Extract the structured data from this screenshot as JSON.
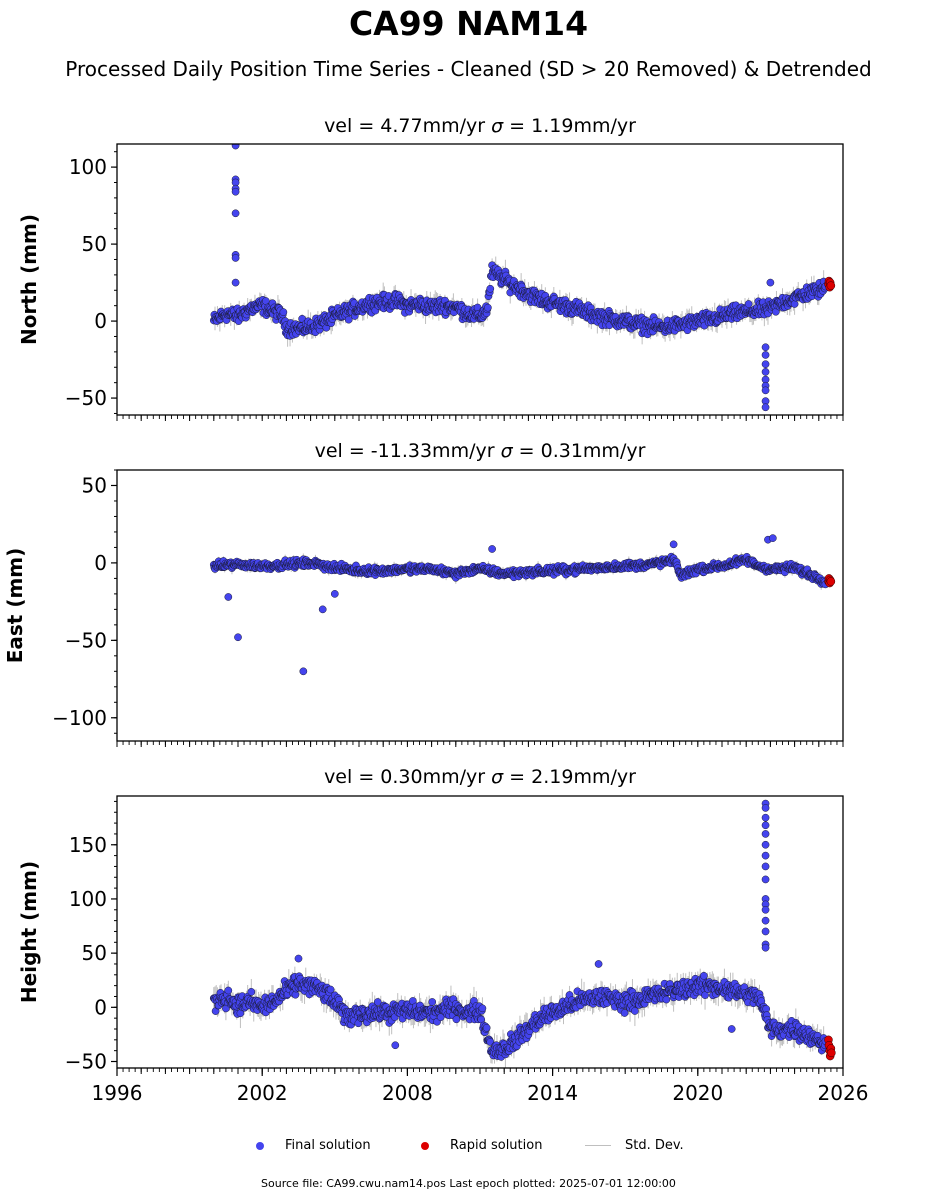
{
  "title": "CA99 NAM14",
  "subtitle": "Processed Daily Position Time Series - Cleaned (SD > 20 Removed) & Detrended",
  "source_note": "Source file: CA99.cwu.nam14.pos  Last epoch plotted: 2025-07-01 12:00:00",
  "legend": [
    {
      "label": "Final solution",
      "color": "#4444ee",
      "kind": "dot"
    },
    {
      "label": "Rapid solution",
      "color": "#dd0000",
      "kind": "dot"
    },
    {
      "label": "Std. Dev.",
      "color": "#bfbfbf",
      "kind": "line"
    }
  ],
  "chart_data": [
    {
      "type": "scatter",
      "id": "north",
      "title_vel": "vel = 4.77mm/yr",
      "title_sigma_sym": "σ",
      "title_sigma_val": " = 1.19mm/yr",
      "ylabel": "North (mm)",
      "xlim": [
        1996,
        2026
      ],
      "ylim": [
        -61,
        115
      ],
      "yticks": [
        100,
        50,
        0,
        -50
      ],
      "ytick_labels": [
        "100",
        "50",
        "0",
        "−50"
      ],
      "show_x_labels": false,
      "trend": [
        [
          2000.0,
          0
        ],
        [
          2000.5,
          5
        ],
        [
          2001.0,
          3
        ],
        [
          2001.5,
          8
        ],
        [
          2002.0,
          10
        ],
        [
          2002.5,
          6
        ],
        [
          2002.8,
          4
        ],
        [
          2003.0,
          -4
        ],
        [
          2003.5,
          -5
        ],
        [
          2004.0,
          -4
        ],
        [
          2004.5,
          -1
        ],
        [
          2005.0,
          3
        ],
        [
          2005.5,
          6
        ],
        [
          2006.0,
          9
        ],
        [
          2006.5,
          12
        ],
        [
          2007.0,
          12
        ],
        [
          2007.5,
          13
        ],
        [
          2008.0,
          10
        ],
        [
          2008.5,
          11
        ],
        [
          2009.0,
          9
        ],
        [
          2009.5,
          10
        ],
        [
          2010.0,
          9
        ],
        [
          2010.5,
          5
        ],
        [
          2011.0,
          3
        ],
        [
          2011.3,
          8
        ],
        [
          2011.5,
          32
        ],
        [
          2012.0,
          27
        ],
        [
          2012.5,
          22
        ],
        [
          2013.0,
          18
        ],
        [
          2013.5,
          14
        ],
        [
          2014.0,
          12
        ],
        [
          2014.5,
          10
        ],
        [
          2015.0,
          8
        ],
        [
          2015.5,
          5
        ],
        [
          2016.0,
          3
        ],
        [
          2016.5,
          1
        ],
        [
          2017.0,
          0
        ],
        [
          2017.5,
          -2
        ],
        [
          2018.0,
          -3
        ],
        [
          2018.5,
          -4
        ],
        [
          2019.0,
          -3
        ],
        [
          2019.5,
          -2
        ],
        [
          2020.0,
          0
        ],
        [
          2020.5,
          1
        ],
        [
          2021.0,
          3
        ],
        [
          2021.5,
          5
        ],
        [
          2022.0,
          6
        ],
        [
          2022.5,
          7
        ],
        [
          2023.0,
          8
        ],
        [
          2023.5,
          12
        ],
        [
          2024.0,
          15
        ],
        [
          2024.5,
          18
        ],
        [
          2025.0,
          20
        ],
        [
          2025.3,
          22
        ]
      ],
      "noise": 4,
      "outliers": [
        [
          2000.9,
          114
        ],
        [
          2000.9,
          92
        ],
        [
          2000.9,
          90
        ],
        [
          2000.9,
          86
        ],
        [
          2000.9,
          84
        ],
        [
          2000.9,
          70
        ],
        [
          2000.9,
          43
        ],
        [
          2000.9,
          41
        ],
        [
          2000.9,
          25
        ],
        [
          2022.8,
          -17
        ],
        [
          2022.8,
          -22
        ],
        [
          2022.8,
          -28
        ],
        [
          2022.8,
          -33
        ],
        [
          2022.8,
          -38
        ],
        [
          2022.8,
          -42
        ],
        [
          2022.8,
          -45
        ],
        [
          2022.8,
          -52
        ],
        [
          2022.8,
          -56
        ],
        [
          2023.0,
          25
        ]
      ],
      "rapid": [
        [
          2025.4,
          24
        ],
        [
          2025.42,
          26
        ],
        [
          2025.45,
          22
        ],
        [
          2025.47,
          25
        ],
        [
          2025.5,
          23
        ]
      ]
    },
    {
      "type": "scatter",
      "id": "east",
      "title_vel": "vel = -11.33mm/yr",
      "title_sigma_sym": "σ",
      "title_sigma_val": " = 0.31mm/yr",
      "ylabel": "East (mm)",
      "xlim": [
        1996,
        2026
      ],
      "ylim": [
        -115,
        60
      ],
      "yticks": [
        50,
        0,
        -50,
        -100
      ],
      "ytick_labels": [
        "50",
        "0",
        "−50",
        "−100"
      ],
      "show_x_labels": false,
      "trend": [
        [
          2000.0,
          -2
        ],
        [
          2001.0,
          -1
        ],
        [
          2002.0,
          -2
        ],
        [
          2003.0,
          -1
        ],
        [
          2004.0,
          0
        ],
        [
          2005.0,
          -3
        ],
        [
          2006.0,
          -5
        ],
        [
          2007.0,
          -5
        ],
        [
          2008.0,
          -4
        ],
        [
          2009.0,
          -4
        ],
        [
          2010.0,
          -7
        ],
        [
          2010.5,
          -5
        ],
        [
          2011.0,
          -4
        ],
        [
          2012.0,
          -7
        ],
        [
          2013.0,
          -6
        ],
        [
          2014.0,
          -5
        ],
        [
          2015.0,
          -4
        ],
        [
          2016.0,
          -3
        ],
        [
          2017.0,
          -2
        ],
        [
          2018.0,
          -1
        ],
        [
          2019.0,
          2
        ],
        [
          2019.3,
          -8
        ],
        [
          2020.0,
          -4
        ],
        [
          2021.0,
          -2
        ],
        [
          2022.0,
          2
        ],
        [
          2022.5,
          -2
        ],
        [
          2023.0,
          -4
        ],
        [
          2024.0,
          -3
        ],
        [
          2025.0,
          -10
        ],
        [
          2025.3,
          -12
        ]
      ],
      "noise": 2,
      "outliers": [
        [
          2000.6,
          -22
        ],
        [
          2001.0,
          -48
        ],
        [
          2003.7,
          -70
        ],
        [
          2004.5,
          -30
        ],
        [
          2005.0,
          -20
        ],
        [
          2011.5,
          9
        ],
        [
          2019.0,
          12
        ],
        [
          2022.9,
          15
        ],
        [
          2023.1,
          16
        ]
      ],
      "rapid": [
        [
          2025.4,
          -12
        ],
        [
          2025.42,
          -10
        ],
        [
          2025.45,
          -13
        ],
        [
          2025.47,
          -11
        ],
        [
          2025.5,
          -12
        ]
      ]
    },
    {
      "type": "scatter",
      "id": "height",
      "title_vel": "vel = 0.30mm/yr",
      "title_sigma_sym": "σ",
      "title_sigma_val": " = 2.19mm/yr",
      "ylabel": "Height (mm)",
      "xlim": [
        1996,
        2026
      ],
      "ylim": [
        -56,
        195
      ],
      "yticks": [
        150,
        100,
        50,
        0,
        -50
      ],
      "ytick_labels": [
        "150",
        "100",
        "50",
        "0",
        "−50"
      ],
      "show_x_labels": true,
      "xticks": [
        1996,
        2002,
        2008,
        2014,
        2020,
        2026
      ],
      "xtick_labels": [
        "1996",
        "2002",
        "2008",
        "2014",
        "2020",
        "2026"
      ],
      "trend": [
        [
          2000.0,
          5
        ],
        [
          2000.5,
          10
        ],
        [
          2001.0,
          2
        ],
        [
          2001.5,
          5
        ],
        [
          2002.0,
          0
        ],
        [
          2002.5,
          5
        ],
        [
          2003.0,
          15
        ],
        [
          2003.5,
          22
        ],
        [
          2004.0,
          20
        ],
        [
          2004.5,
          15
        ],
        [
          2005.0,
          5
        ],
        [
          2005.5,
          -10
        ],
        [
          2006.0,
          -5
        ],
        [
          2007.0,
          -5
        ],
        [
          2008.0,
          -3
        ],
        [
          2009.0,
          -5
        ],
        [
          2010.0,
          0
        ],
        [
          2010.5,
          -5
        ],
        [
          2011.0,
          -3
        ],
        [
          2011.5,
          -40
        ],
        [
          2012.0,
          -38
        ],
        [
          2012.5,
          -30
        ],
        [
          2013.0,
          -20
        ],
        [
          2013.5,
          -10
        ],
        [
          2014.0,
          -5
        ],
        [
          2015.0,
          5
        ],
        [
          2016.0,
          10
        ],
        [
          2017.0,
          5
        ],
        [
          2018.0,
          10
        ],
        [
          2019.0,
          15
        ],
        [
          2020.0,
          20
        ],
        [
          2021.0,
          18
        ],
        [
          2022.0,
          12
        ],
        [
          2022.5,
          10
        ],
        [
          2023.0,
          -20
        ],
        [
          2023.5,
          -20
        ],
        [
          2024.0,
          -20
        ],
        [
          2024.5,
          -25
        ],
        [
          2025.0,
          -30
        ],
        [
          2025.3,
          -35
        ]
      ],
      "noise": 7,
      "outliers": [
        [
          2022.8,
          188
        ],
        [
          2022.8,
          184
        ],
        [
          2022.8,
          175
        ],
        [
          2022.8,
          168
        ],
        [
          2022.8,
          160
        ],
        [
          2022.8,
          150
        ],
        [
          2022.8,
          140
        ],
        [
          2022.8,
          130
        ],
        [
          2022.8,
          118
        ],
        [
          2022.8,
          100
        ],
        [
          2022.8,
          95
        ],
        [
          2022.8,
          90
        ],
        [
          2022.8,
          80
        ],
        [
          2022.8,
          70
        ],
        [
          2022.8,
          58
        ],
        [
          2022.8,
          55
        ],
        [
          2015.9,
          40
        ],
        [
          2003.5,
          45
        ],
        [
          2021.4,
          -20
        ],
        [
          2007.5,
          -35
        ]
      ],
      "rapid": [
        [
          2025.4,
          -30
        ],
        [
          2025.42,
          -35
        ],
        [
          2025.45,
          -40
        ],
        [
          2025.47,
          -45
        ],
        [
          2025.5,
          -38
        ],
        [
          2025.52,
          -42
        ]
      ]
    }
  ]
}
